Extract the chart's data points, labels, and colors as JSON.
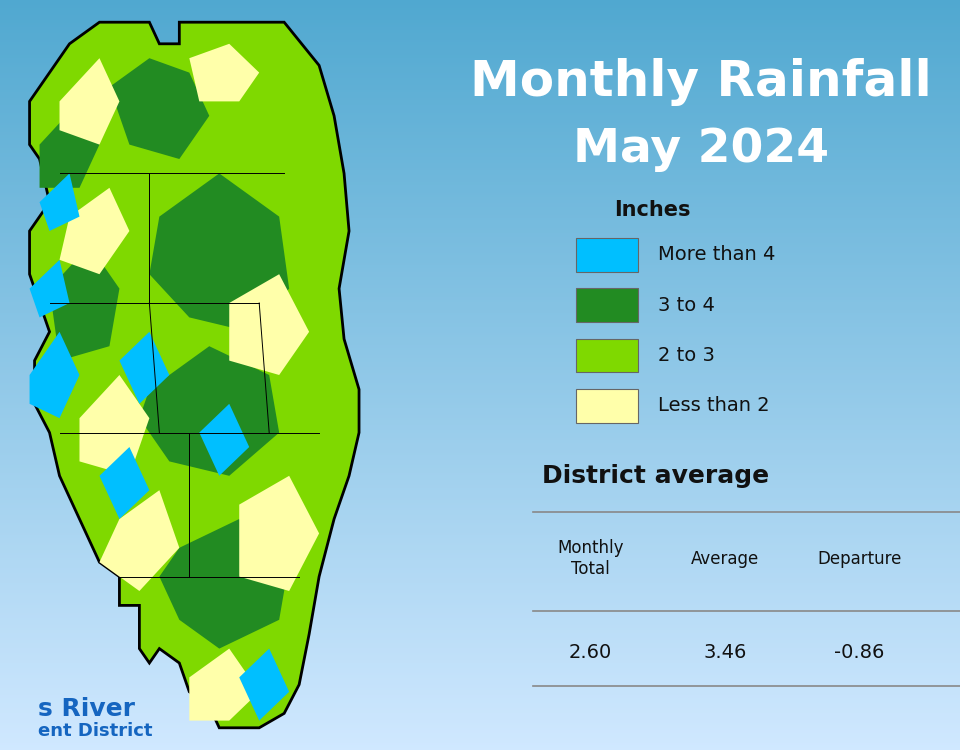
{
  "title_line1": "Monthly Rainfall",
  "title_line2": "May 2024",
  "title_color": "#FFFFFF",
  "title_fontsize": 36,
  "subtitle_fontsize": 34,
  "legend_title": "Inches",
  "legend_items": [
    {
      "label": "More than 4",
      "color": "#00BFFF"
    },
    {
      "label": "3 to 4",
      "color": "#228B22"
    },
    {
      "label": "2 to 3",
      "color": "#7FD900"
    },
    {
      "label": "Less than 2",
      "color": "#FFFFAA"
    }
  ],
  "district_avg_title": "District average",
  "table_headers": [
    "Monthly\nTotal",
    "Average",
    "Departure"
  ],
  "table_values": [
    "2.60",
    "3.46",
    "-0.86"
  ],
  "footer_text_line1": "s River",
  "footer_text_line2": "ent District",
  "footer_color": "#1565C0"
}
